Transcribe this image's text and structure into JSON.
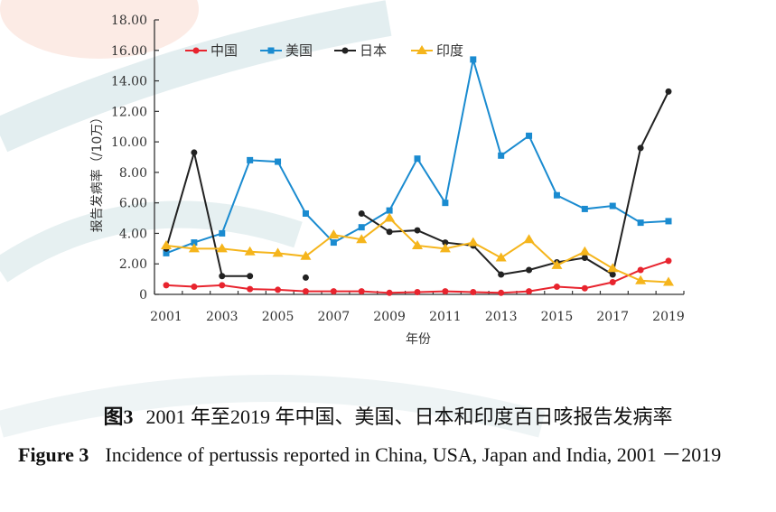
{
  "chart_data": {
    "type": "line",
    "title": "",
    "xlabel": "年份",
    "ylabel": "报告发病率（/10万）",
    "ylim": [
      0,
      18
    ],
    "yticks": [
      "0",
      "2.00",
      "4.00",
      "6.00",
      "8.00",
      "10.00",
      "12.00",
      "14.00",
      "16.00",
      "18.00"
    ],
    "ytick_values": [
      0,
      2,
      4,
      6,
      8,
      10,
      12,
      14,
      16,
      18
    ],
    "xticks": [
      "2001",
      "2003",
      "2005",
      "2007",
      "2009",
      "2011",
      "2013",
      "2015",
      "2017",
      "2019"
    ],
    "x": [
      2001,
      2002,
      2003,
      2004,
      2005,
      2006,
      2007,
      2008,
      2009,
      2010,
      2011,
      2012,
      2013,
      2014,
      2015,
      2016,
      2017,
      2018,
      2019
    ],
    "legend_position": "top-left",
    "grid": false,
    "series": [
      {
        "name": "中国",
        "color": "#e8242e",
        "marker": "circle",
        "values": [
          0.6,
          0.5,
          0.6,
          0.35,
          0.3,
          0.2,
          0.2,
          0.2,
          0.1,
          0.15,
          0.2,
          0.15,
          0.1,
          0.2,
          0.5,
          0.4,
          0.8,
          1.6,
          2.2
        ]
      },
      {
        "name": "美国",
        "color": "#1a8bd0",
        "marker": "square",
        "values": [
          2.7,
          3.4,
          4.0,
          8.8,
          8.7,
          5.3,
          3.4,
          4.4,
          5.5,
          8.9,
          6.0,
          15.4,
          9.1,
          10.4,
          6.5,
          5.6,
          5.8,
          4.7,
          4.8
        ]
      },
      {
        "name": "日本",
        "color": "#222222",
        "marker": "circle",
        "values": [
          3.0,
          9.3,
          1.2,
          1.2,
          null,
          1.1,
          null,
          5.3,
          4.1,
          4.2,
          3.4,
          3.2,
          1.3,
          1.6,
          2.1,
          2.4,
          1.3,
          9.6,
          13.3
        ]
      },
      {
        "name": "印度",
        "color": "#f5b51c",
        "marker": "triangle",
        "values": [
          3.2,
          3.0,
          3.0,
          2.8,
          2.7,
          2.5,
          3.9,
          3.6,
          5.0,
          3.2,
          3.0,
          3.4,
          2.4,
          3.6,
          1.9,
          2.8,
          1.7,
          0.9,
          0.8
        ]
      }
    ]
  },
  "caption": {
    "cn_label": "图3",
    "cn_text": "2001 年至2019 年中国、美国、日本和印度百日咳报告发病率",
    "en_label": "Figure 3",
    "en_text": "Incidence of pertussis reported in China, USA, Japan and India, 2001 －2019"
  }
}
